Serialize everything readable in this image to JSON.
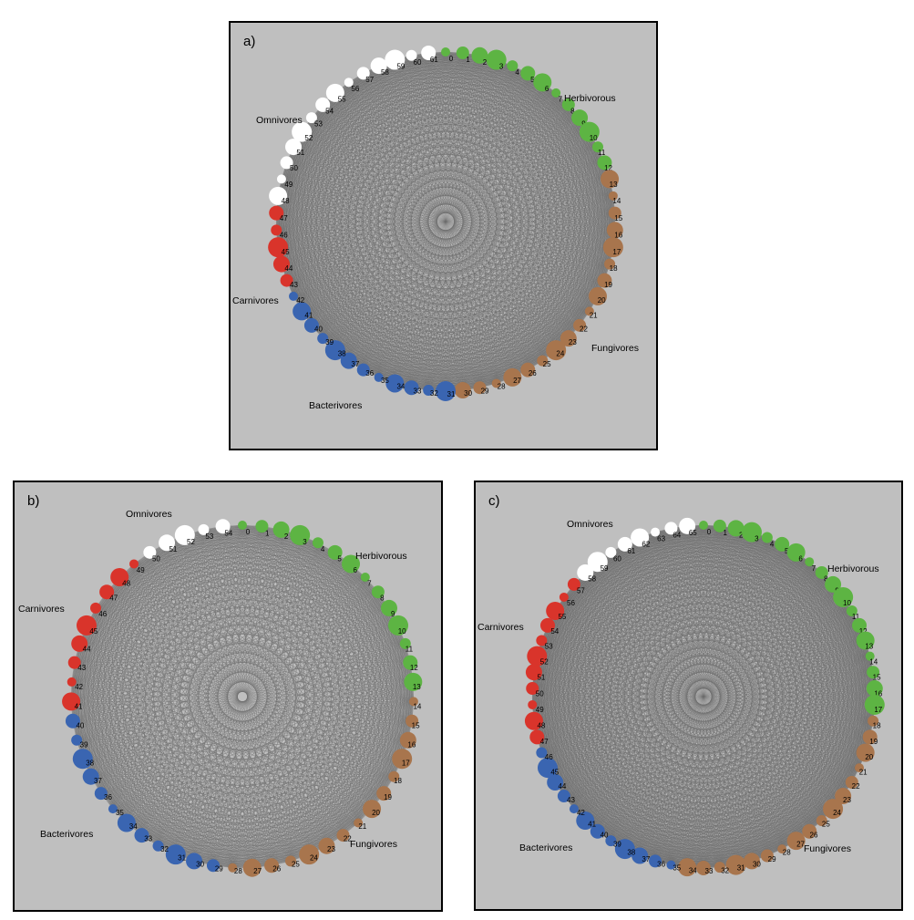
{
  "colors": {
    "background": "#bfbfbf",
    "edge": "#6e6e6e",
    "Herbivorous": "#5db443",
    "Fungivores": "#a8754d",
    "Bacterivores": "#3a65b1",
    "Carnivores": "#d9342b",
    "Omnivores": "#ffffff"
  },
  "panels": [
    {
      "label": "a)",
      "node_count": 62,
      "groups": [
        {
          "name": "Herbivorous",
          "nodes": [
            0,
            12
          ]
        },
        {
          "name": "Fungivores",
          "nodes": [
            13,
            30
          ]
        },
        {
          "name": "Bacterivores",
          "nodes": [
            31,
            42
          ]
        },
        {
          "name": "Carnivores",
          "nodes": [
            43,
            47
          ]
        },
        {
          "name": "Omnivores",
          "nodes": [
            48,
            61
          ]
        }
      ],
      "group_labels": {
        "Herbivorous": "Herbivorous",
        "Fungivores": "Fungivores",
        "Bacterivores": "Bacterivores",
        "Carnivores": "Carnivores",
        "Omnivores": "Omnivores"
      }
    },
    {
      "label": "b)",
      "node_count": 55,
      "groups": [
        {
          "name": "Herbivorous",
          "nodes": [
            0,
            13
          ]
        },
        {
          "name": "Fungivores",
          "nodes": [
            14,
            28
          ]
        },
        {
          "name": "Bacterivores",
          "nodes": [
            29,
            40
          ]
        },
        {
          "name": "Carnivores",
          "nodes": [
            41,
            49
          ]
        },
        {
          "name": "Omnivores",
          "nodes": [
            50,
            54
          ]
        }
      ],
      "group_labels": {
        "Herbivorous": "Herbivorous",
        "Fungivores": "Fungivores",
        "Bacterivores": "Bacterivores",
        "Carnivores": "Carnivores",
        "Omnivores": "Omnivores"
      }
    },
    {
      "label": "c)",
      "node_count": 66,
      "groups": [
        {
          "name": "Herbivorous",
          "nodes": [
            0,
            17
          ]
        },
        {
          "name": "Fungivores",
          "nodes": [
            18,
            34
          ]
        },
        {
          "name": "Bacterivores",
          "nodes": [
            35,
            46
          ]
        },
        {
          "name": "Carnivores",
          "nodes": [
            47,
            57
          ]
        },
        {
          "name": "Omnivores",
          "nodes": [
            58,
            65
          ]
        }
      ],
      "group_labels": {
        "Herbivorous": "Herbivorous",
        "Fungivores": "Fungivores",
        "Bacterivores": "Bacterivores",
        "Carnivores": "Carnivores",
        "Omnivores": "Omnivores"
      }
    }
  ]
}
